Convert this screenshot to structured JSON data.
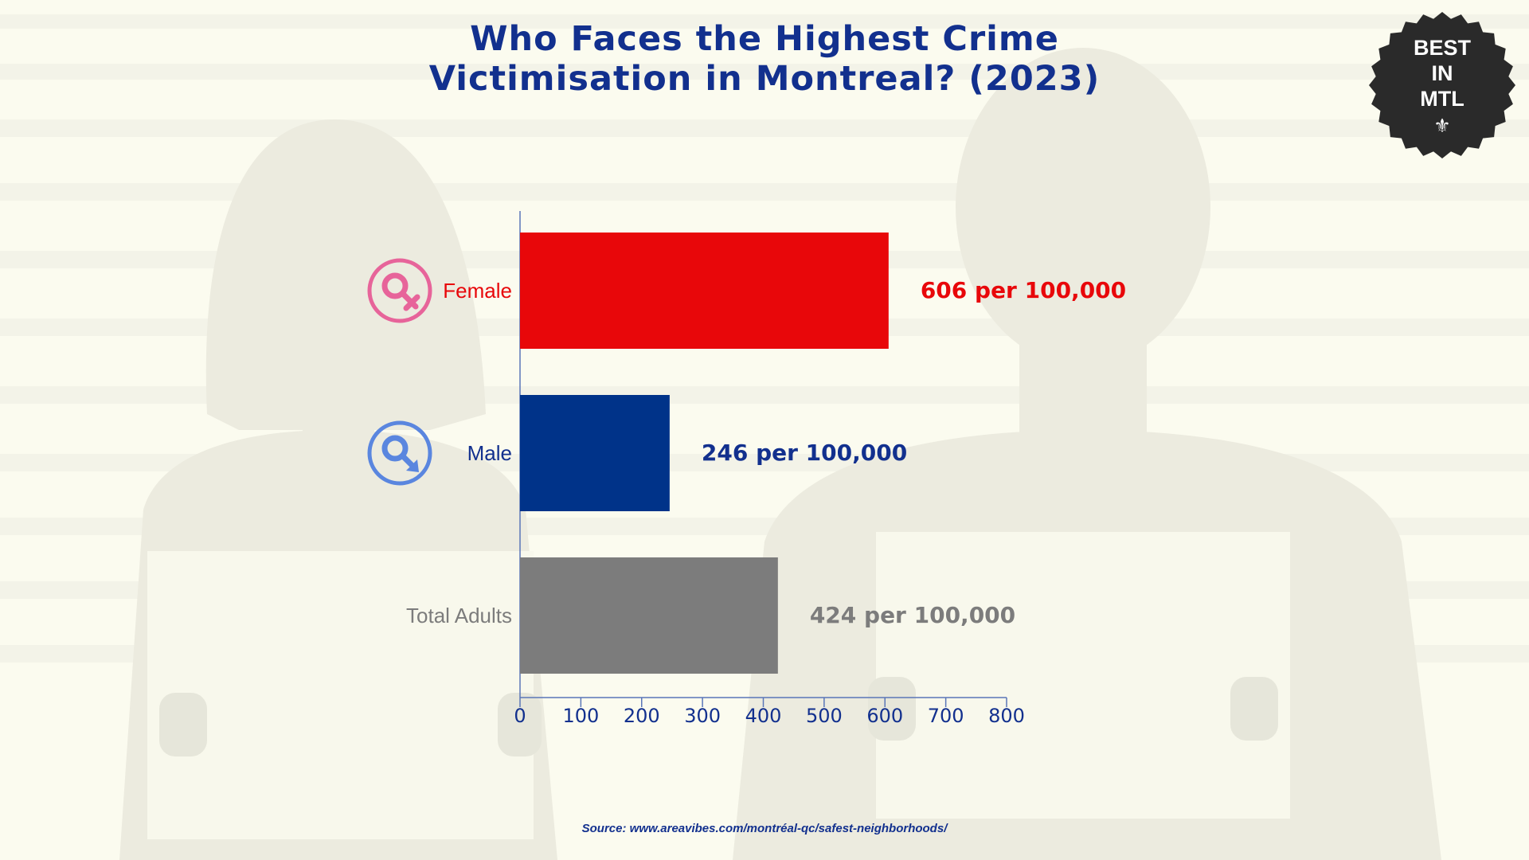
{
  "title": {
    "line1": "Who Faces the Highest Crime",
    "line2": "Victimisation in Montreal? (2023)"
  },
  "badge": {
    "line1": "BEST",
    "line2": "IN",
    "line3": "MTL",
    "icon": "fleur-de-lis-icon"
  },
  "source": "Source: www.areavibes.com/montréal-qc/safest-neighborhoods/",
  "chart_data": {
    "type": "bar",
    "orientation": "horizontal",
    "title": "Who Faces the Highest Crime Victimisation in Montreal? (2023)",
    "categories": [
      "Female",
      "Male",
      "Total Adults"
    ],
    "values": [
      606,
      246,
      424
    ],
    "data_labels": [
      "606 per 100,000",
      "246 per 100,000",
      "424 per 100,000"
    ],
    "category_icons": [
      "female-symbol-icon",
      "male-symbol-icon",
      ""
    ],
    "colors": [
      "#e8070a",
      "#003389",
      "#7c7c7c"
    ],
    "label_colors": [
      "#e8070a",
      "#12308e",
      "#7c7c7c"
    ],
    "category_label_colors": [
      "#e8070a",
      "#12308e",
      "#7c7c7c"
    ],
    "icon_colors": [
      "#e7649a",
      "#5a86df",
      ""
    ],
    "xlim": [
      0,
      800
    ],
    "xticks": [
      0,
      100,
      200,
      300,
      400,
      500,
      600,
      700,
      800
    ],
    "xlabel": "",
    "ylabel": "",
    "grid": false,
    "legend": "none"
  }
}
